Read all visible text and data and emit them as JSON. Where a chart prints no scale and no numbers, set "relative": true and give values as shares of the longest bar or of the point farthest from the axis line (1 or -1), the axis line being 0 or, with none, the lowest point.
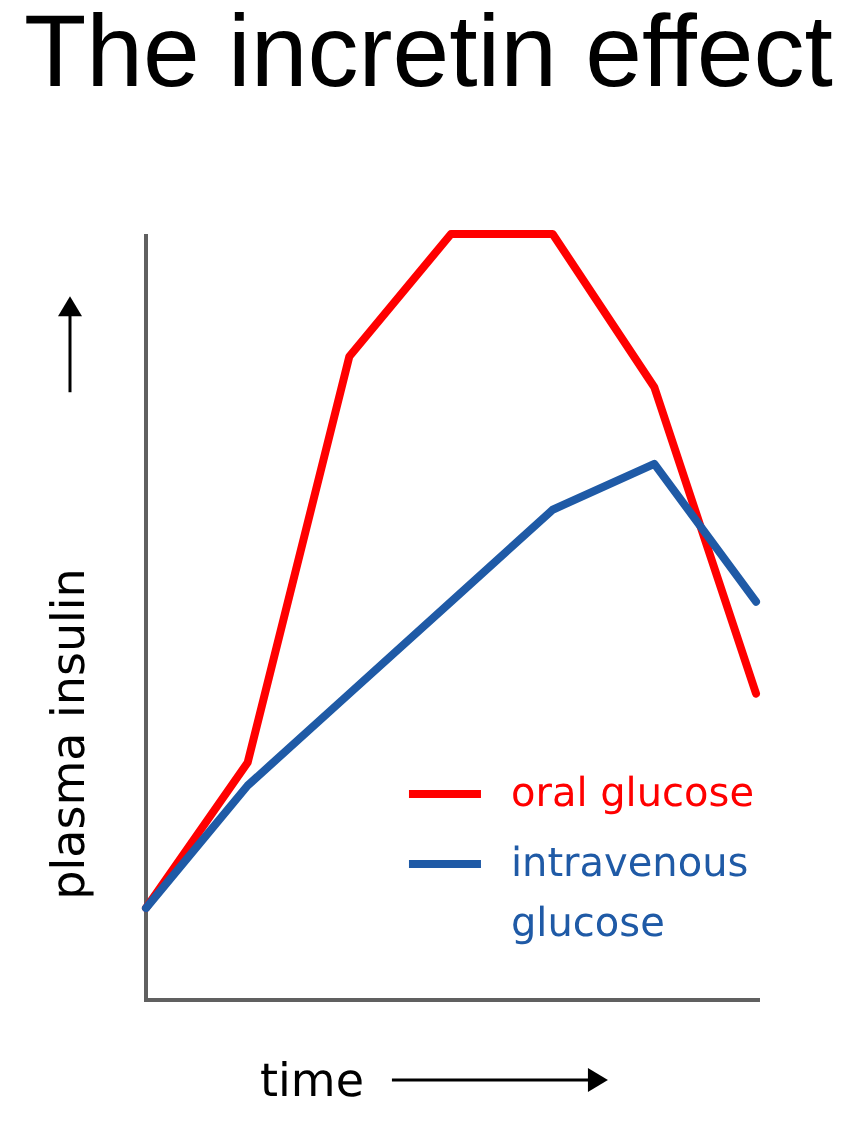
{
  "chart_data": {
    "type": "line",
    "title": "The incretin effect",
    "xlabel": "time",
    "ylabel": "plasma insulin",
    "categories": [
      null,
      null,
      null,
      null,
      null,
      null,
      null
    ],
    "relative": true,
    "series": [
      {
        "name": "oral glucose",
        "color": "#ff0000",
        "values": [
          0.12,
          0.31,
          0.84,
          1,
          1,
          0.8,
          0.4
        ]
      },
      {
        "name": "intravenous glucose",
        "color": "#1f5aa6",
        "values": [
          0.12,
          0.28,
          0.4,
          0.52,
          0.64,
          0.7,
          0.52
        ]
      }
    ],
    "legend": "bottom right",
    "line_style": "solid"
  }
}
